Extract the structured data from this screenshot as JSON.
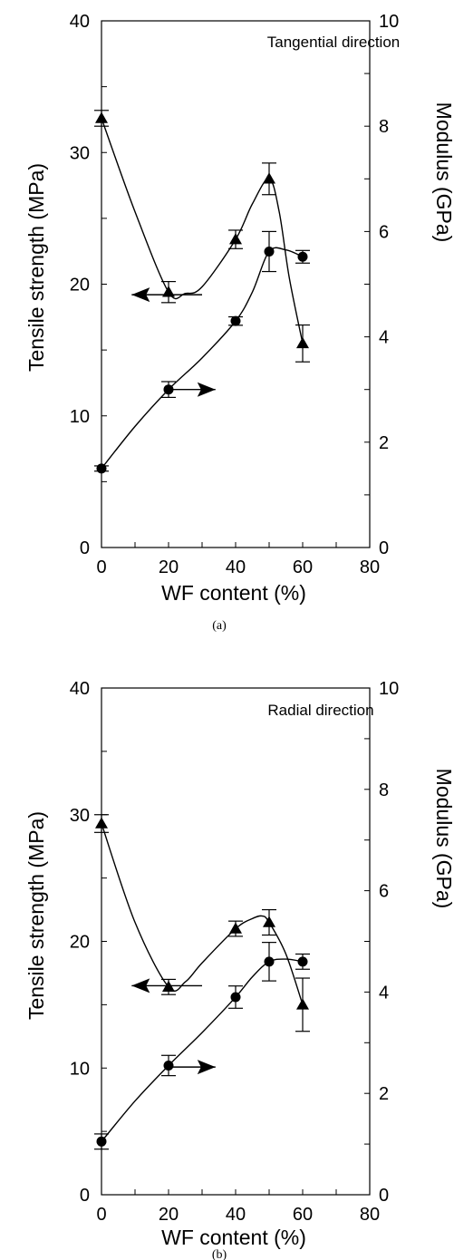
{
  "chart_data": [
    {
      "type": "line",
      "caption": "(a)",
      "annotation": "Tangential direction",
      "xlabel": "WF content (%)",
      "ylabel": "Tensile strength (MPa)",
      "y2label": "Modulus (GPa)",
      "xlim": [
        0,
        80
      ],
      "ylim": [
        0,
        40
      ],
      "y2lim": [
        0,
        10
      ],
      "xticks": [
        "0",
        "20",
        "40",
        "60",
        "80"
      ],
      "yticks": [
        "0",
        "10",
        "20",
        "30",
        "40"
      ],
      "y2ticks": [
        "0",
        "2",
        "4",
        "6",
        "8",
        "10"
      ],
      "series": [
        {
          "marker": "triangle",
          "axis": "left",
          "x": [
            0,
            20,
            40,
            50,
            60
          ],
          "y": [
            32.6,
            19.4,
            23.4,
            28.0,
            15.5
          ],
          "err": [
            0.6,
            0.8,
            0.7,
            1.2,
            1.4
          ]
        },
        {
          "marker": "circle",
          "axis": "right",
          "x": [
            0,
            20,
            40,
            50,
            60
          ],
          "y": [
            1.5,
            3.0,
            4.3,
            5.62,
            5.52
          ],
          "err": [
            0.05,
            0.15,
            0.08,
            0.38,
            0.12
          ]
        }
      ],
      "curves": [
        {
          "axis": "left",
          "points": [
            [
              0,
              32.6
            ],
            [
              10,
              25.5
            ],
            [
              20,
              19.4
            ],
            [
              25,
              19.3
            ],
            [
              30,
              19.8
            ],
            [
              40,
              23.4
            ],
            [
              45,
              26.1
            ],
            [
              50,
              28.0
            ],
            [
              53,
              25.5
            ],
            [
              56,
              20.5
            ],
            [
              60,
              15.5
            ]
          ]
        },
        {
          "axis": "right",
          "points": [
            [
              0,
              1.5
            ],
            [
              10,
              2.3
            ],
            [
              20,
              3.0
            ],
            [
              30,
              3.6
            ],
            [
              40,
              4.3
            ],
            [
              45,
              4.85
            ],
            [
              50,
              5.62
            ],
            [
              55,
              5.65
            ],
            [
              60,
              5.52
            ]
          ]
        }
      ],
      "arrows": [
        {
          "axis": "left",
          "direction": "left",
          "x_from": 30,
          "x_to": 9,
          "y": 19.2
        },
        {
          "axis": "right",
          "direction": "right",
          "x_from": 20,
          "x_to": 34,
          "y": 3.0
        }
      ]
    },
    {
      "type": "line",
      "caption": "(b)",
      "annotation": "Radial direction",
      "xlabel": "WF content (%)",
      "ylabel": "Tensile strength (MPa)",
      "y2label": "Modulus (GPa)",
      "xlim": [
        0,
        80
      ],
      "ylim": [
        0,
        40
      ],
      "y2lim": [
        0,
        10
      ],
      "xticks": [
        "0",
        "20",
        "40",
        "60",
        "80"
      ],
      "yticks": [
        "0",
        "10",
        "20",
        "30",
        "40"
      ],
      "y2ticks": [
        "0",
        "2",
        "4",
        "6",
        "8",
        "10"
      ],
      "series": [
        {
          "marker": "triangle",
          "axis": "left",
          "x": [
            0,
            20,
            40,
            50,
            60
          ],
          "y": [
            29.3,
            16.4,
            21.0,
            21.5,
            15.0
          ],
          "err": [
            0.7,
            0.6,
            0.6,
            1.0,
            2.1
          ]
        },
        {
          "marker": "circle",
          "axis": "right",
          "x": [
            0,
            20,
            40,
            50,
            60
          ],
          "y": [
            1.05,
            2.55,
            3.9,
            4.6,
            4.6
          ],
          "err": [
            0.15,
            0.2,
            0.22,
            0.38,
            0.15
          ]
        }
      ],
      "curves": [
        {
          "axis": "left",
          "points": [
            [
              0,
              29.3
            ],
            [
              10,
              21.5
            ],
            [
              20,
              16.4
            ],
            [
              25,
              16.8
            ],
            [
              30,
              18.3
            ],
            [
              40,
              21.0
            ],
            [
              45,
              21.8
            ],
            [
              48,
              22.0
            ],
            [
              50,
              21.5
            ],
            [
              55,
              19.0
            ],
            [
              60,
              15.0
            ]
          ]
        },
        {
          "axis": "right",
          "points": [
            [
              0,
              1.05
            ],
            [
              10,
              1.85
            ],
            [
              20,
              2.55
            ],
            [
              30,
              3.2
            ],
            [
              40,
              3.9
            ],
            [
              45,
              4.3
            ],
            [
              50,
              4.6
            ],
            [
              55,
              4.65
            ],
            [
              60,
              4.6
            ]
          ]
        }
      ],
      "arrows": [
        {
          "axis": "left",
          "direction": "left",
          "x_from": 30,
          "x_to": 9,
          "y": 16.5
        },
        {
          "axis": "right",
          "direction": "right",
          "x_from": 20,
          "x_to": 34,
          "y": 2.52
        }
      ]
    }
  ]
}
